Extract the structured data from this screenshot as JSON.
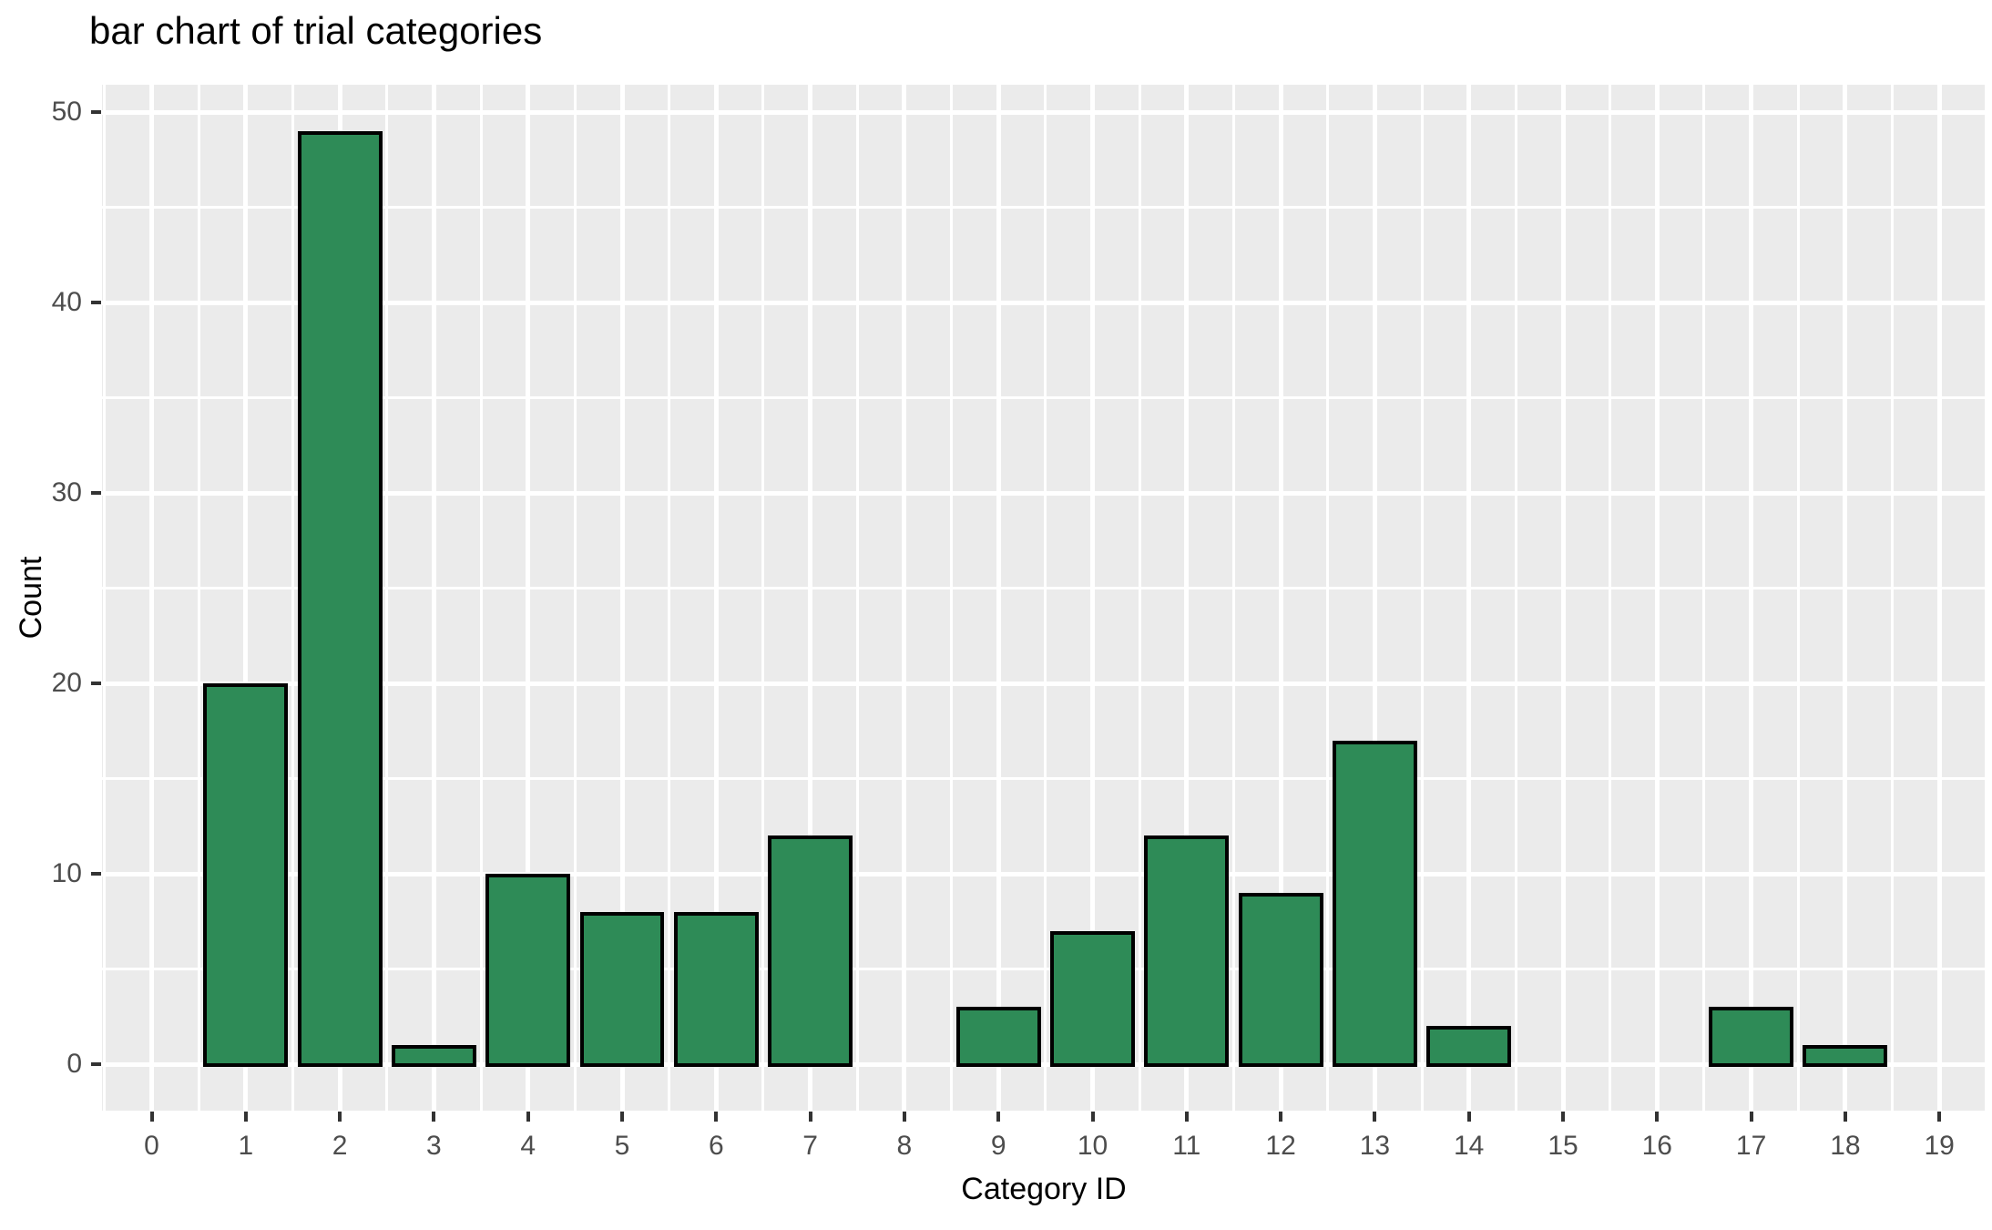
{
  "chart_data": {
    "type": "bar",
    "title": "bar chart of trial categories",
    "xlabel": "Category ID",
    "ylabel": "Count",
    "categories": [
      0,
      1,
      2,
      3,
      4,
      5,
      6,
      7,
      8,
      9,
      10,
      11,
      12,
      13,
      14,
      15,
      16,
      17,
      18,
      19
    ],
    "values": [
      0,
      20,
      49,
      1,
      10,
      8,
      8,
      12,
      0,
      3,
      7,
      12,
      9,
      17,
      2,
      0,
      0,
      3,
      1,
      0
    ],
    "x_tick_labels": [
      "0",
      "1",
      "2",
      "3",
      "4",
      "5",
      "6",
      "7",
      "8",
      "9",
      "10",
      "11",
      "12",
      "13",
      "14",
      "15",
      "16",
      "17",
      "18",
      "19"
    ],
    "y_tick_values": [
      0,
      10,
      20,
      30,
      40,
      50
    ],
    "y_tick_labels": [
      "0",
      "10",
      "20",
      "30",
      "40",
      "50"
    ],
    "ylim": [
      0,
      50
    ],
    "grid": "major-and-minor",
    "legend": false,
    "bar_width_fraction": 0.9
  },
  "style": {
    "bar_fill": "#2e8b57",
    "bar_stroke": "#000000",
    "panel_background": "#ebebeb",
    "grid_color": "#ffffff",
    "tick_label_color": "#4d4d4d",
    "tick_mark_color": "#333333",
    "title_color": "#000000",
    "figure_background": "#ffffff"
  }
}
